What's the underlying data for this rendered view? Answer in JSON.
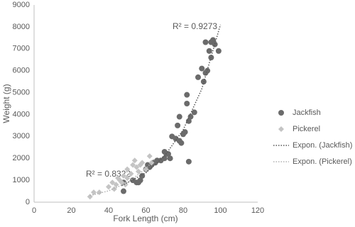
{
  "chart_data": {
    "type": "scatter",
    "x_label": "Fork Length (cm)",
    "y_label": "Weight (g)",
    "xlim": [
      0,
      120
    ],
    "ylim": [
      0,
      9000
    ],
    "xticks": [
      0,
      20,
      40,
      60,
      80,
      100,
      120
    ],
    "yticks": [
      0,
      1000,
      2000,
      3000,
      4000,
      5000,
      6000,
      7000,
      8000,
      9000
    ],
    "legend": "right",
    "series": [
      {
        "name": "Jackfish",
        "color": "#6b6b6b",
        "marker": "circle",
        "x": [
          48,
          48,
          53,
          55,
          56,
          57,
          58,
          60,
          61,
          62,
          63,
          64,
          65,
          66,
          68,
          70,
          70,
          71,
          72,
          73,
          74,
          76,
          77,
          78,
          78,
          79,
          80,
          81,
          82,
          82,
          83,
          83,
          84,
          86,
          88,
          90,
          91,
          92,
          92,
          93,
          94,
          95,
          95,
          96,
          97,
          99
        ],
        "values": [
          500,
          900,
          1000,
          900,
          900,
          1000,
          1200,
          1500,
          1700,
          1600,
          1700,
          1800,
          1800,
          1900,
          1900,
          2000,
          2300,
          2200,
          2200,
          2000,
          3000,
          2900,
          3500,
          3900,
          2800,
          2700,
          3100,
          3200,
          4500,
          4900,
          1850,
          3700,
          3900,
          4100,
          5700,
          6100,
          5500,
          7300,
          5900,
          6000,
          6900,
          6600,
          7300,
          7400,
          7200,
          6900
        ]
      },
      {
        "name": "Pickerel",
        "color": "#c4c4c4",
        "marker": "diamond",
        "x": [
          30,
          32,
          35,
          40,
          42,
          43,
          44,
          45,
          46,
          47,
          48,
          49,
          50,
          50,
          52,
          53,
          54,
          55,
          56,
          57,
          58,
          60,
          62,
          63
        ],
        "values": [
          250,
          450,
          450,
          700,
          900,
          600,
          800,
          1100,
          1000,
          900,
          1200,
          800,
          1100,
          1500,
          1300,
          1700,
          1900,
          1600,
          1400,
          1700,
          1800,
          1500,
          2100,
          1800
        ]
      }
    ],
    "trendlines": [
      {
        "name": "Expon. (Jackfish)",
        "color": "#555555",
        "r2_label": "R² = 0.9273",
        "x": [
          47,
          60,
          70,
          80,
          90,
          100
        ],
        "values": [
          750,
          1344,
          2106,
          3300,
          5172,
          8100
        ]
      },
      {
        "name": "Expon. (Pickerel)",
        "color": "#b0b0b0",
        "r2_label": "R² = 0.8322",
        "x": [
          30,
          40,
          50,
          60,
          65
        ],
        "values": [
          300,
          516,
          887,
          1525,
          2000
        ]
      }
    ]
  }
}
